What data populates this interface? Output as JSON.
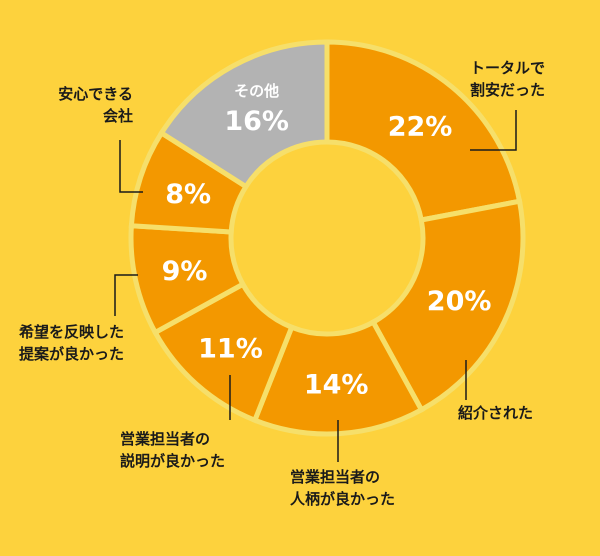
{
  "colors": {
    "background": "#FDD23D",
    "segment": "#F39800",
    "other": "#B3B3B3",
    "separator": "#F6DF6A",
    "text_on_segment": "#FFFFFF",
    "label_text": "#1A1A1A"
  },
  "chart_data": {
    "type": "pie",
    "title": "",
    "slices": [
      {
        "id": "total_cheap",
        "label_lines": [
          "トータルで",
          "割安だった"
        ],
        "value": 22,
        "display": "22%"
      },
      {
        "id": "referred",
        "label_lines": [
          "紹介された"
        ],
        "value": 20,
        "display": "20%"
      },
      {
        "id": "staff_personality",
        "label_lines": [
          "営業担当者の",
          "人柄が良かった"
        ],
        "value": 14,
        "display": "14%"
      },
      {
        "id": "staff_explanation",
        "label_lines": [
          "営業担当者の",
          "説明が良かった"
        ],
        "value": 11,
        "display": "11%"
      },
      {
        "id": "proposal",
        "label_lines": [
          "希望を反映した",
          "提案が良かった"
        ],
        "value": 9,
        "display": "9%"
      },
      {
        "id": "trustworthy",
        "label_lines": [
          "安心できる",
          "会社"
        ],
        "value": 8,
        "display": "8%"
      },
      {
        "id": "other",
        "label_lines": [
          "その他"
        ],
        "value": 16,
        "display": "16%"
      }
    ]
  }
}
